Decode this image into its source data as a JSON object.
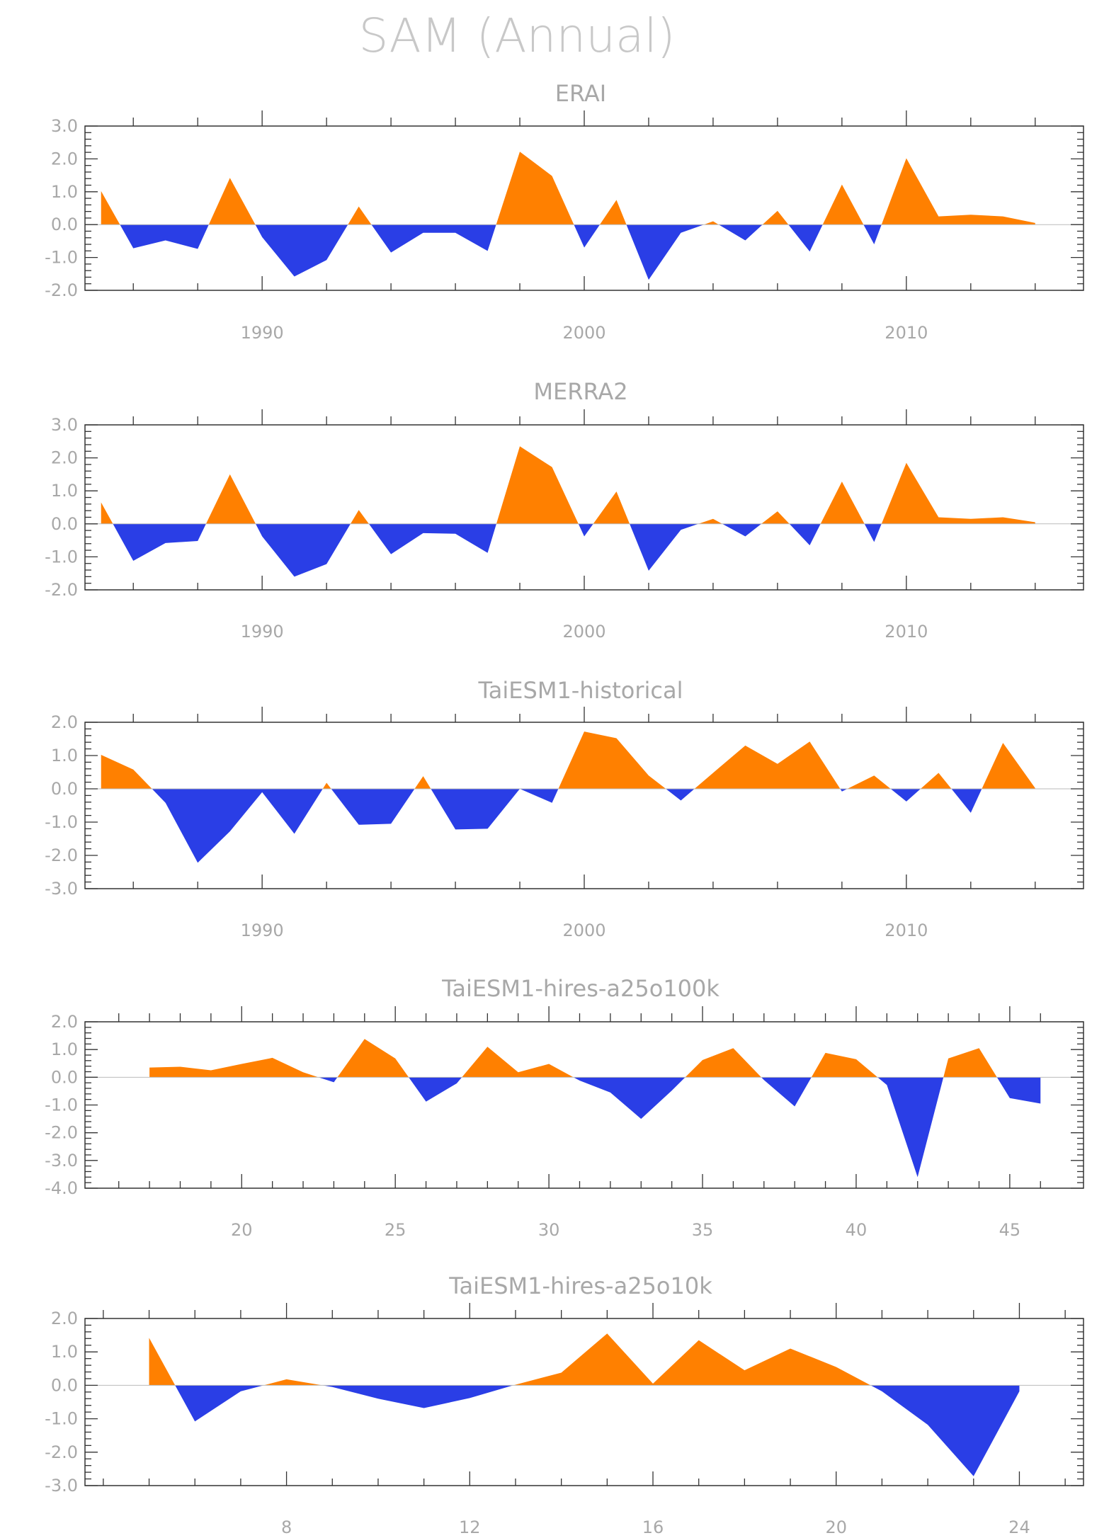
{
  "title": "SAM (Annual)",
  "colors": {
    "positive": "#ff8000",
    "negative": "#2a3ee6"
  },
  "chart_data": [
    {
      "type": "area",
      "title": "ERAI",
      "x": [
        1985,
        1986,
        1987,
        1988,
        1989,
        1990,
        1991,
        1992,
        1993,
        1994,
        1995,
        1996,
        1997,
        1998,
        1999,
        2000,
        2001,
        2002,
        2003,
        2004,
        2005,
        2006,
        2007,
        2008,
        2009,
        2010,
        2011,
        2012,
        2013,
        2014
      ],
      "values": [
        1.02,
        -0.72,
        -0.48,
        -0.74,
        1.42,
        -0.38,
        -1.58,
        -1.08,
        0.55,
        -0.85,
        -0.25,
        -0.25,
        -0.8,
        2.22,
        1.48,
        -0.7,
        0.75,
        -1.68,
        -0.25,
        0.1,
        -0.48,
        0.42,
        -0.82,
        1.22,
        -0.6,
        2.02,
        0.25,
        0.3,
        0.25,
        0.05
      ],
      "xlim": [
        1984.5,
        2015.5
      ],
      "ylim": [
        -2.0,
        3.0
      ],
      "ytick_labels": [
        "3.0",
        "2.0",
        "1.0",
        "0.0",
        "-1.0",
        "-2.0"
      ],
      "xtick_labels": [
        "1990",
        "2000",
        "2010"
      ]
    },
    {
      "type": "area",
      "title": "MERRA2",
      "x": [
        1985,
        1986,
        1987,
        1988,
        1989,
        1990,
        1991,
        1992,
        1993,
        1994,
        1995,
        1996,
        1997,
        1998,
        1999,
        2000,
        2001,
        2002,
        2003,
        2004,
        2005,
        2006,
        2007,
        2008,
        2009,
        2010,
        2011,
        2012,
        2013,
        2014
      ],
      "values": [
        0.65,
        -1.12,
        -0.58,
        -0.52,
        1.5,
        -0.38,
        -1.6,
        -1.22,
        0.42,
        -0.92,
        -0.28,
        -0.3,
        -0.88,
        2.35,
        1.72,
        -0.38,
        0.98,
        -1.42,
        -0.18,
        0.15,
        -0.38,
        0.38,
        -0.65,
        1.28,
        -0.55,
        1.85,
        0.2,
        0.15,
        0.2,
        0.05
      ],
      "xlim": [
        1984.5,
        2015.5
      ],
      "ylim": [
        -2.0,
        3.0
      ],
      "ytick_labels": [
        "3.0",
        "2.0",
        "1.0",
        "0.0",
        "-1.0",
        "-2.0"
      ],
      "xtick_labels": [
        "1990",
        "2000",
        "2010"
      ]
    },
    {
      "type": "area",
      "title": "TaiESM1-historical",
      "x": [
        1985,
        1986,
        1987,
        1988,
        1989,
        1990,
        1991,
        1992,
        1993,
        1994,
        1995,
        1996,
        1997,
        1998,
        1999,
        2000,
        2001,
        2002,
        2003,
        2004,
        2005,
        2006,
        2007,
        2008,
        2009,
        2010,
        2011,
        2012,
        2013,
        2014
      ],
      "values": [
        1.02,
        0.58,
        -0.42,
        -2.22,
        -1.28,
        -0.1,
        -1.35,
        0.18,
        -1.08,
        -1.05,
        0.38,
        -1.22,
        -1.2,
        0.0,
        -0.42,
        1.72,
        1.52,
        0.4,
        -0.35,
        0.48,
        1.3,
        0.75,
        1.42,
        -0.08,
        0.4,
        -0.38,
        0.48,
        -0.72,
        1.38,
        0.02
      ],
      "xlim": [
        1984.5,
        2015.5
      ],
      "ylim": [
        -3.0,
        2.0
      ],
      "ytick_labels": [
        "2.0",
        "1.0",
        "0.0",
        "-1.0",
        "-2.0",
        "-3.0"
      ],
      "xtick_labels": [
        "1990",
        "2000",
        "2010"
      ]
    },
    {
      "type": "area",
      "title": "TaiESM1-hires-a25o100k",
      "x": [
        17,
        18,
        19,
        20,
        21,
        22,
        23,
        24,
        25,
        26,
        27,
        28,
        29,
        30,
        31,
        32,
        33,
        34,
        35,
        36,
        37,
        38,
        39,
        40,
        41,
        42,
        43,
        44,
        45,
        46
      ],
      "values": [
        0.35,
        0.38,
        0.25,
        0.48,
        0.7,
        0.18,
        -0.18,
        1.38,
        0.68,
        -0.88,
        -0.22,
        1.1,
        0.18,
        0.48,
        -0.12,
        -0.55,
        -1.5,
        -0.48,
        0.62,
        1.05,
        -0.1,
        -1.05,
        0.88,
        0.65,
        -0.28,
        -3.6,
        0.68,
        1.05,
        -0.75,
        -0.95
      ],
      "xlim": [
        14.9,
        47.4
      ],
      "ylim": [
        -4.0,
        2.0
      ],
      "ytick_labels": [
        "2.0",
        "1.0",
        "0.0",
        "-1.0",
        "-2.0",
        "-3.0",
        "-4.0"
      ],
      "xtick_labels": [
        "20",
        "25",
        "30",
        "35",
        "40",
        "45"
      ]
    },
    {
      "type": "area",
      "title": "TaiESM1-hires-a25o10k",
      "x": [
        5,
        6,
        7,
        8,
        9,
        10,
        11,
        12,
        13,
        14,
        15,
        16,
        17,
        18,
        19,
        20,
        21,
        22,
        23,
        24
      ],
      "values": [
        1.42,
        -1.08,
        -0.18,
        0.18,
        -0.05,
        -0.4,
        -0.68,
        -0.38,
        0.02,
        0.38,
        1.55,
        0.05,
        1.35,
        0.45,
        1.1,
        0.55,
        -0.18,
        -1.18,
        -2.72,
        -0.18
      ],
      "xlim": [
        3.6,
        25.4
      ],
      "ylim": [
        -3.0,
        2.0
      ],
      "ytick_labels": [
        "2.0",
        "1.0",
        "0.0",
        "-1.0",
        "-2.0",
        "-3.0"
      ],
      "xtick_labels": [
        "8",
        "12",
        "16",
        "20",
        "24"
      ]
    }
  ]
}
